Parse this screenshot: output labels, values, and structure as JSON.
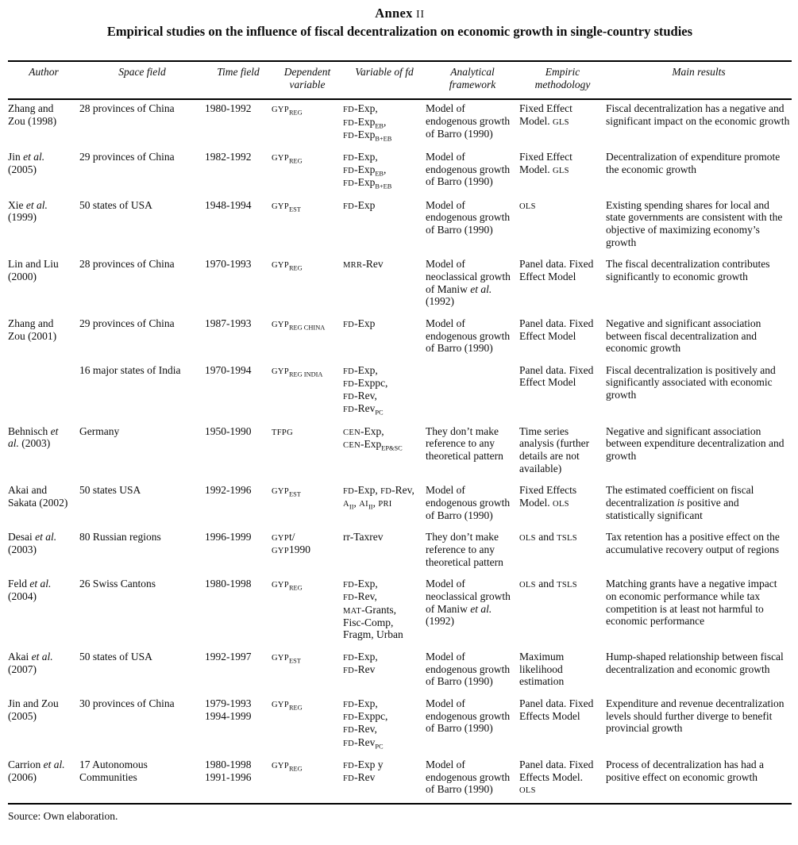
{
  "page": {
    "title_main": "Annex",
    "title_numeral": "II",
    "subtitle": "Empirical studies on the influence of fiscal decentralization on economic growth in single-country studies",
    "source_note": "Source: Own elaboration."
  },
  "table": {
    "columns": [
      "Author",
      "Space field",
      "Time field",
      "Dependent variable",
      "Variable of fd",
      "Analytical framework",
      "Empiric methodology",
      "Main results"
    ],
    "rows": [
      {
        "author": "Zhang and Zou (1998)",
        "space": "28 provinces of China",
        "time": "1980-1992",
        "dependent": "^GYP^~REG~",
        "variable": "^FD^-Exp,\n^FD^-Exp~EB~,\n^FD^-Exp~B+EB~",
        "framework": "Model of endogenous growth of Barro (1990)",
        "methodology": "Fixed Effect Model. ^GLS^",
        "results": "Fiscal decentralization has a negative and significant impact on the economic growth"
      },
      {
        "author": "Jin *et al.* (2005)",
        "space": "29 provinces of China",
        "time": "1982-1992",
        "dependent": "^GYP^~REG~",
        "variable": "^FD^-Exp,\n^FD^-Exp~EB~,\n^FD^-Exp~B+EB~",
        "framework": "Model of endogenous growth of Barro (1990)",
        "methodology": "Fixed Effect Model. ^GLS^",
        "results": "Decentralization of expenditure promote the economic growth"
      },
      {
        "author": "Xie *et al.* (1999)",
        "space": "50 states of USA",
        "time": "1948-1994",
        "dependent": "^GYP^~EST~",
        "variable": "^FD^-Exp",
        "framework": "Model of endogenous growth of Barro (1990)",
        "methodology": "^OLS^",
        "results": "Existing spending shares for local and state governments are consistent with the objective of maximizing economy’s growth"
      },
      {
        "author": "Lin and Liu (2000)",
        "space": "28 provinces of China",
        "time": "1970-1993",
        "dependent": "^GYP^~REG~",
        "variable": "^MRR^-Rev",
        "framework": "Model of neoclassical growth of Maniw *et al.* (1992)",
        "methodology": "Panel data. Fixed Effect Model",
        "results": "The fiscal decentralization contributes significantly to economic growth"
      },
      {
        "author": "Zhang and Zou (2001)",
        "space": "29 provinces of China",
        "time": "1987-1993",
        "dependent": "^GYP^~REG CHINA~",
        "variable": "^FD^-Exp",
        "framework": "Model of endogenous growth of Barro (1990)",
        "methodology": "Panel data. Fixed Effect Model",
        "results": "Negative and significant association between fiscal decentralization and economic growth"
      },
      {
        "author": "",
        "space": "16 major states of India",
        "time": "1970-1994",
        "dependent": "^GYP^~REG INDIA~",
        "variable": "^FD^-Exp,\n^FD^-Exppc,\n^FD^-Rev,\n^FD^-Rev~PC~",
        "framework": "",
        "methodology": "Panel data. Fixed Effect Model",
        "results": "Fiscal decentralization is positively and significantly associated with economic growth"
      },
      {
        "author": "Behnisch *et al.* (2003)",
        "space": "Germany",
        "time": "1950-1990",
        "dependent": "^TFPG^",
        "variable": "^CEN^-Exp,\n^CEN^-Exp~EP&SC~",
        "framework": "They don’t make reference to any theoretical pattern",
        "methodology": "Time series analysis (further details are not available)",
        "results": "Negative and significant association between expenditure decentralization and growth"
      },
      {
        "author": "Akai and Sakata (2002)",
        "space": "50 states USA",
        "time": "1992-1996",
        "dependent": "^GYP^~EST~",
        "variable": "^FD^-Exp, ^FD^-Rev, ^A^~II~, ^AI^~II~, ^PRI^",
        "framework": "Model of endogenous growth of Barro (1990)",
        "methodology": "Fixed Effects Model. ^OLS^",
        "results": "The estimated coefficient on fiscal decentralization *is* positive and statistically significant"
      },
      {
        "author": "Desai *et al.* (2003)",
        "space": "80 Russian regions",
        "time": "1996-1999",
        "dependent": "^GYP^t/\n^GYP^1990",
        "variable": "rr-Taxrev",
        "framework": "They don’t make reference to any theoretical pattern",
        "methodology": "^OLS^ and ^TSLS^",
        "results": "Tax retention has a positive effect on the accumulative recovery output of regions"
      },
      {
        "author": "Feld *et al.* (2004)",
        "space": "26 Swiss Cantons",
        "time": "1980-1998",
        "dependent": "^GYP^~REG~",
        "variable": "^FD^-Exp,\n^FD^-Rev,\n^MAT^-Grants,\nFisc-Comp,\nFragm, Urban",
        "framework": "Model of neoclassical growth of Maniw *et al.* (1992)",
        "methodology": "^OLS^ and ^TSLS^",
        "results": "Matching grants have a negative impact on economic performance while tax competition is at least not harmful to economic performance"
      },
      {
        "author": "Akai *et al.* (2007)",
        "space": "50 states of USA",
        "time": "1992-1997",
        "dependent": "^GYP^~EST~",
        "variable": "^FD^-Exp,\n^FD^-Rev",
        "framework": "Model of endogenous growth of Barro (1990)",
        "methodology": "Maximum likelihood estimation",
        "results": "Hump-shaped relationship between fiscal decentralization and economic growth"
      },
      {
        "author": "Jin and Zou (2005)",
        "space": "30 provinces of China",
        "time": "1979-1993\n1994-1999",
        "dependent": "^GYP^~REG~",
        "variable": "^FD^-Exp,\n^FD^-Exppc,\n^FD^-Rev,\n^FD^-Rev~PC~",
        "framework": "Model of endogenous growth of Barro (1990)",
        "methodology": "Panel data. Fixed Effects Model",
        "results": "Expenditure and revenue decentralization levels should further diverge to benefit provincial growth"
      },
      {
        "author": "Carrion *et al.* (2006)",
        "space": "17 Autonomous Communities",
        "time": "1980-1998\n1991-1996",
        "dependent": "^GYP^~REG~",
        "variable": "^FD^-Exp y\n^FD^-Rev",
        "framework": "Model of endogenous growth of Barro (1990)",
        "methodology": "Panel data. Fixed Effects Model. ^OLS^",
        "results": "Process of decentralization has had a positive effect on economic growth"
      }
    ]
  }
}
